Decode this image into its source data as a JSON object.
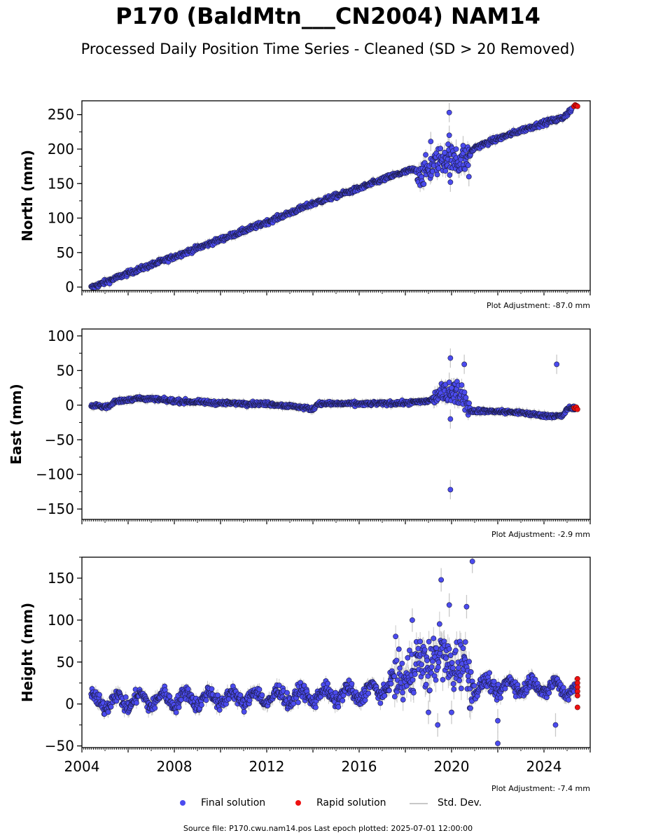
{
  "title": "P170 (BaldMtn___CN2004) NAM14",
  "subtitle": "Processed Daily Position Time Series - Cleaned (SD > 20 Removed)",
  "source_text": "Source file: P170.cwu.nam14.pos  Last epoch plotted: 2025-07-01 12:00:00",
  "legend": {
    "final_label": "Final solution",
    "rapid_label": "Rapid solution",
    "std_label": "Std. Dev."
  },
  "colors": {
    "final": "#4b4bef",
    "final_edge": "#1a1a40",
    "rapid": "#ee1111",
    "std": "#c8c8c8"
  },
  "chart_data": [
    {
      "type": "scatter",
      "component": "north",
      "ylabel": "North (mm)",
      "adjustment": "Plot Adjustment: -87.0 mm",
      "xlim": [
        2004.0,
        2026.0
      ],
      "ylim": [
        -5,
        270
      ],
      "yticks": [
        0,
        50,
        100,
        150,
        200,
        250
      ],
      "xticks": [
        2004,
        2008,
        2012,
        2016,
        2020,
        2024
      ],
      "show_xtick_labels": false,
      "trend": [
        [
          2004.4,
          -1
        ],
        [
          2006.0,
          20
        ],
        [
          2008.0,
          44
        ],
        [
          2010.0,
          69
        ],
        [
          2012.0,
          94
        ],
        [
          2014.0,
          121
        ],
        [
          2016.0,
          143
        ],
        [
          2017.5,
          162
        ],
        [
          2018.3,
          170
        ],
        [
          2018.8,
          165
        ],
        [
          2019.5,
          185
        ],
        [
          2020.0,
          185
        ],
        [
          2020.3,
          183
        ],
        [
          2020.6,
          185
        ],
        [
          2021.0,
          202
        ],
        [
          2022.0,
          215
        ],
        [
          2023.0,
          227
        ],
        [
          2024.0,
          238
        ],
        [
          2024.8,
          245
        ],
        [
          2025.2,
          258
        ]
      ],
      "noise": 2.5,
      "noise_segments": [
        [
          2018.5,
          2020.8,
          14
        ]
      ],
      "outliers": [
        [
          2019.9,
          253
        ],
        [
          2019.9,
          220
        ],
        [
          2019.85,
          207
        ],
        [
          2019.95,
          152
        ],
        [
          2020.75,
          160
        ],
        [
          2020.5,
          205
        ],
        [
          2019.1,
          211
        ],
        [
          2020.2,
          200
        ],
        [
          2019.7,
          195
        ]
      ],
      "rapid": [
        [
          2025.3,
          262
        ],
        [
          2025.35,
          264
        ],
        [
          2025.4,
          263
        ],
        [
          2025.45,
          262
        ]
      ]
    },
    {
      "type": "scatter",
      "component": "east",
      "ylabel": "East (mm)",
      "adjustment": "Plot Adjustment: -2.9 mm",
      "xlim": [
        2004.0,
        2026.0
      ],
      "ylim": [
        -165,
        110
      ],
      "yticks": [
        -150,
        -100,
        -50,
        0,
        50,
        100
      ],
      "xticks": [
        2004,
        2008,
        2012,
        2016,
        2020,
        2024
      ],
      "show_xtick_labels": false,
      "trend": [
        [
          2004.4,
          -1
        ],
        [
          2005.2,
          -2
        ],
        [
          2005.4,
          5
        ],
        [
          2006.0,
          8
        ],
        [
          2006.5,
          10
        ],
        [
          2008.0,
          6
        ],
        [
          2010.0,
          3
        ],
        [
          2012.0,
          2
        ],
        [
          2013.5,
          -3
        ],
        [
          2014.0,
          -6
        ],
        [
          2014.2,
          2
        ],
        [
          2016.0,
          2
        ],
        [
          2018.0,
          3
        ],
        [
          2019.0,
          6
        ],
        [
          2019.5,
          15
        ],
        [
          2020.0,
          20
        ],
        [
          2020.5,
          15
        ],
        [
          2020.8,
          -8
        ],
        [
          2022.0,
          -9
        ],
        [
          2023.0,
          -11
        ],
        [
          2024.0,
          -15
        ],
        [
          2024.8,
          -16
        ],
        [
          2025.0,
          -5
        ],
        [
          2025.4,
          -4
        ]
      ],
      "noise": 2.0,
      "noise_segments": [
        [
          2019.2,
          2020.8,
          10
        ]
      ],
      "outliers": [
        [
          2019.95,
          68
        ],
        [
          2020.55,
          59
        ],
        [
          2024.55,
          59
        ],
        [
          2019.95,
          -122
        ],
        [
          2019.95,
          -20
        ],
        [
          2019.9,
          33
        ],
        [
          2020.0,
          25
        ]
      ],
      "rapid": [
        [
          2025.3,
          -4
        ],
        [
          2025.35,
          -5
        ],
        [
          2025.4,
          -3
        ],
        [
          2025.45,
          -6
        ]
      ]
    },
    {
      "type": "scatter",
      "component": "height",
      "ylabel": "Height (mm)",
      "adjustment": "Plot Adjustment: -7.4 mm",
      "xlim": [
        2004.0,
        2026.0
      ],
      "ylim": [
        -52,
        175
      ],
      "yticks": [
        -50,
        0,
        50,
        100,
        150
      ],
      "xticks": [
        2004,
        2008,
        2012,
        2016,
        2020,
        2024
      ],
      "xtick_labels": [
        "2004",
        "2008",
        "2012",
        "2016",
        "2020",
        "2024"
      ],
      "show_xtick_labels": true,
      "trend": [
        [
          2004.4,
          2
        ],
        [
          2008.0,
          6
        ],
        [
          2012.0,
          8
        ],
        [
          2014.0,
          10
        ],
        [
          2016.0,
          12
        ],
        [
          2017.0,
          18
        ],
        [
          2018.0,
          35
        ],
        [
          2018.8,
          50
        ],
        [
          2019.5,
          55
        ],
        [
          2020.0,
          50
        ],
        [
          2020.5,
          45
        ],
        [
          2021.0,
          22
        ],
        [
          2022.0,
          20
        ],
        [
          2023.0,
          22
        ],
        [
          2024.0,
          20
        ],
        [
          2025.4,
          18
        ]
      ],
      "seasonal_amp": 8,
      "noise": 6,
      "noise_segments": [
        [
          2017.5,
          2020.9,
          22
        ]
      ],
      "outliers": [
        [
          2019.55,
          148
        ],
        [
          2020.9,
          170
        ],
        [
          2020.65,
          116
        ],
        [
          2022.0,
          -47
        ],
        [
          2022.0,
          -20
        ],
        [
          2024.5,
          -25
        ],
        [
          2019.0,
          -10
        ],
        [
          2019.4,
          -25
        ],
        [
          2020.0,
          -10
        ],
        [
          2018.3,
          100
        ],
        [
          2019.9,
          118
        ]
      ],
      "rapid": [
        [
          2025.45,
          30
        ],
        [
          2025.45,
          25
        ],
        [
          2025.45,
          20
        ],
        [
          2025.45,
          15
        ],
        [
          2025.45,
          10
        ],
        [
          2025.45,
          -4
        ]
      ]
    }
  ]
}
